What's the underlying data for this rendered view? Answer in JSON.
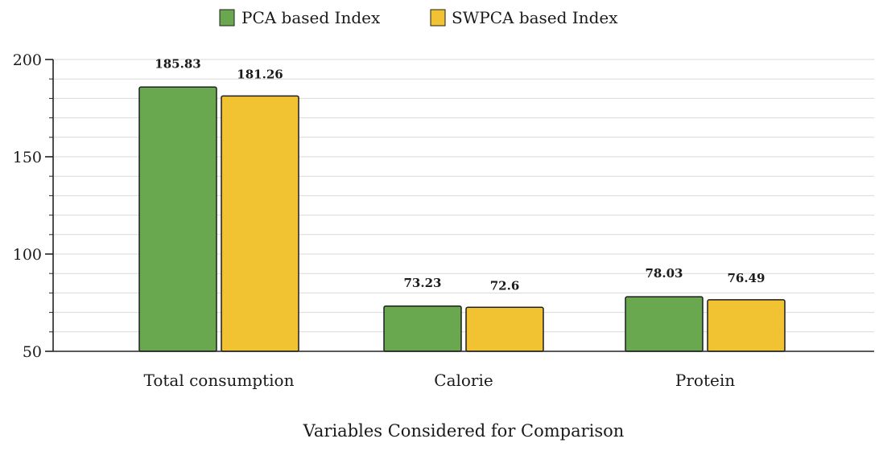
{
  "chart_data": {
    "type": "bar",
    "title": "",
    "xlabel": "Variables Considered for Comparison",
    "ylabel": "",
    "categories": [
      "Total consumption",
      "Calorie",
      "Protein"
    ],
    "series": [
      {
        "name": "PCA based Index",
        "color": "#6aa84f",
        "values": [
          185.83,
          73.23,
          78.03
        ],
        "labels": [
          "185.83",
          "73.23",
          "78.03"
        ]
      },
      {
        "name": "SWPCA based Index",
        "color": "#f1c232",
        "values": [
          181.26,
          72.6,
          76.49
        ],
        "labels": [
          "181.26",
          "72.6",
          "76.49"
        ]
      }
    ],
    "ylim": [
      50,
      200
    ],
    "yticks": [
      50,
      100,
      150,
      200
    ],
    "ytick_labels": [
      "50",
      "100",
      "150",
      "200"
    ],
    "minor_step": 10,
    "grid": true,
    "legend_position": "top-center"
  }
}
